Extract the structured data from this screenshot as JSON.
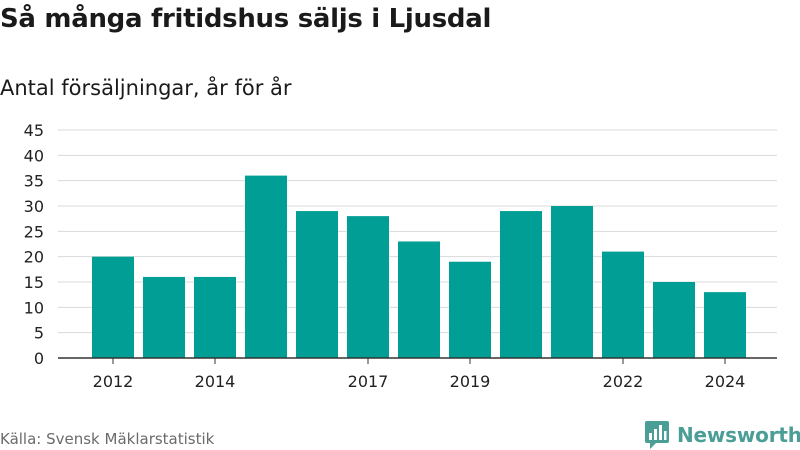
{
  "title": "Så många fritidshus säljs i Ljusdal",
  "subtitle": "Antal försäljningar, år för år",
  "source": "Källa: Svensk Mäklarstatistik",
  "brand": {
    "name": "Newsworthy",
    "icon": "bar-chart-logo-icon",
    "color": "#4b9e96"
  },
  "colors": {
    "bar": "#009e95",
    "grid": "#d9d9d9",
    "axis": "#333333",
    "text": "#222222"
  },
  "chart_data": {
    "type": "bar",
    "categories": [
      "2012",
      "2013",
      "2014",
      "2015",
      "2016",
      "2017",
      "2018",
      "2019",
      "2020",
      "2021",
      "2022",
      "2023",
      "2024"
    ],
    "values": [
      20,
      16,
      16,
      36,
      29,
      28,
      23,
      19,
      29,
      30,
      21,
      15,
      13
    ],
    "x_tick_labels": [
      "2012",
      "2014",
      "2017",
      "2019",
      "2022",
      "2024"
    ],
    "y_ticks": [
      0,
      5,
      10,
      15,
      20,
      25,
      30,
      35,
      40,
      45
    ],
    "ylim": [
      0,
      45
    ],
    "grid": true,
    "legend": "none",
    "xlabel": "",
    "ylabel": ""
  }
}
